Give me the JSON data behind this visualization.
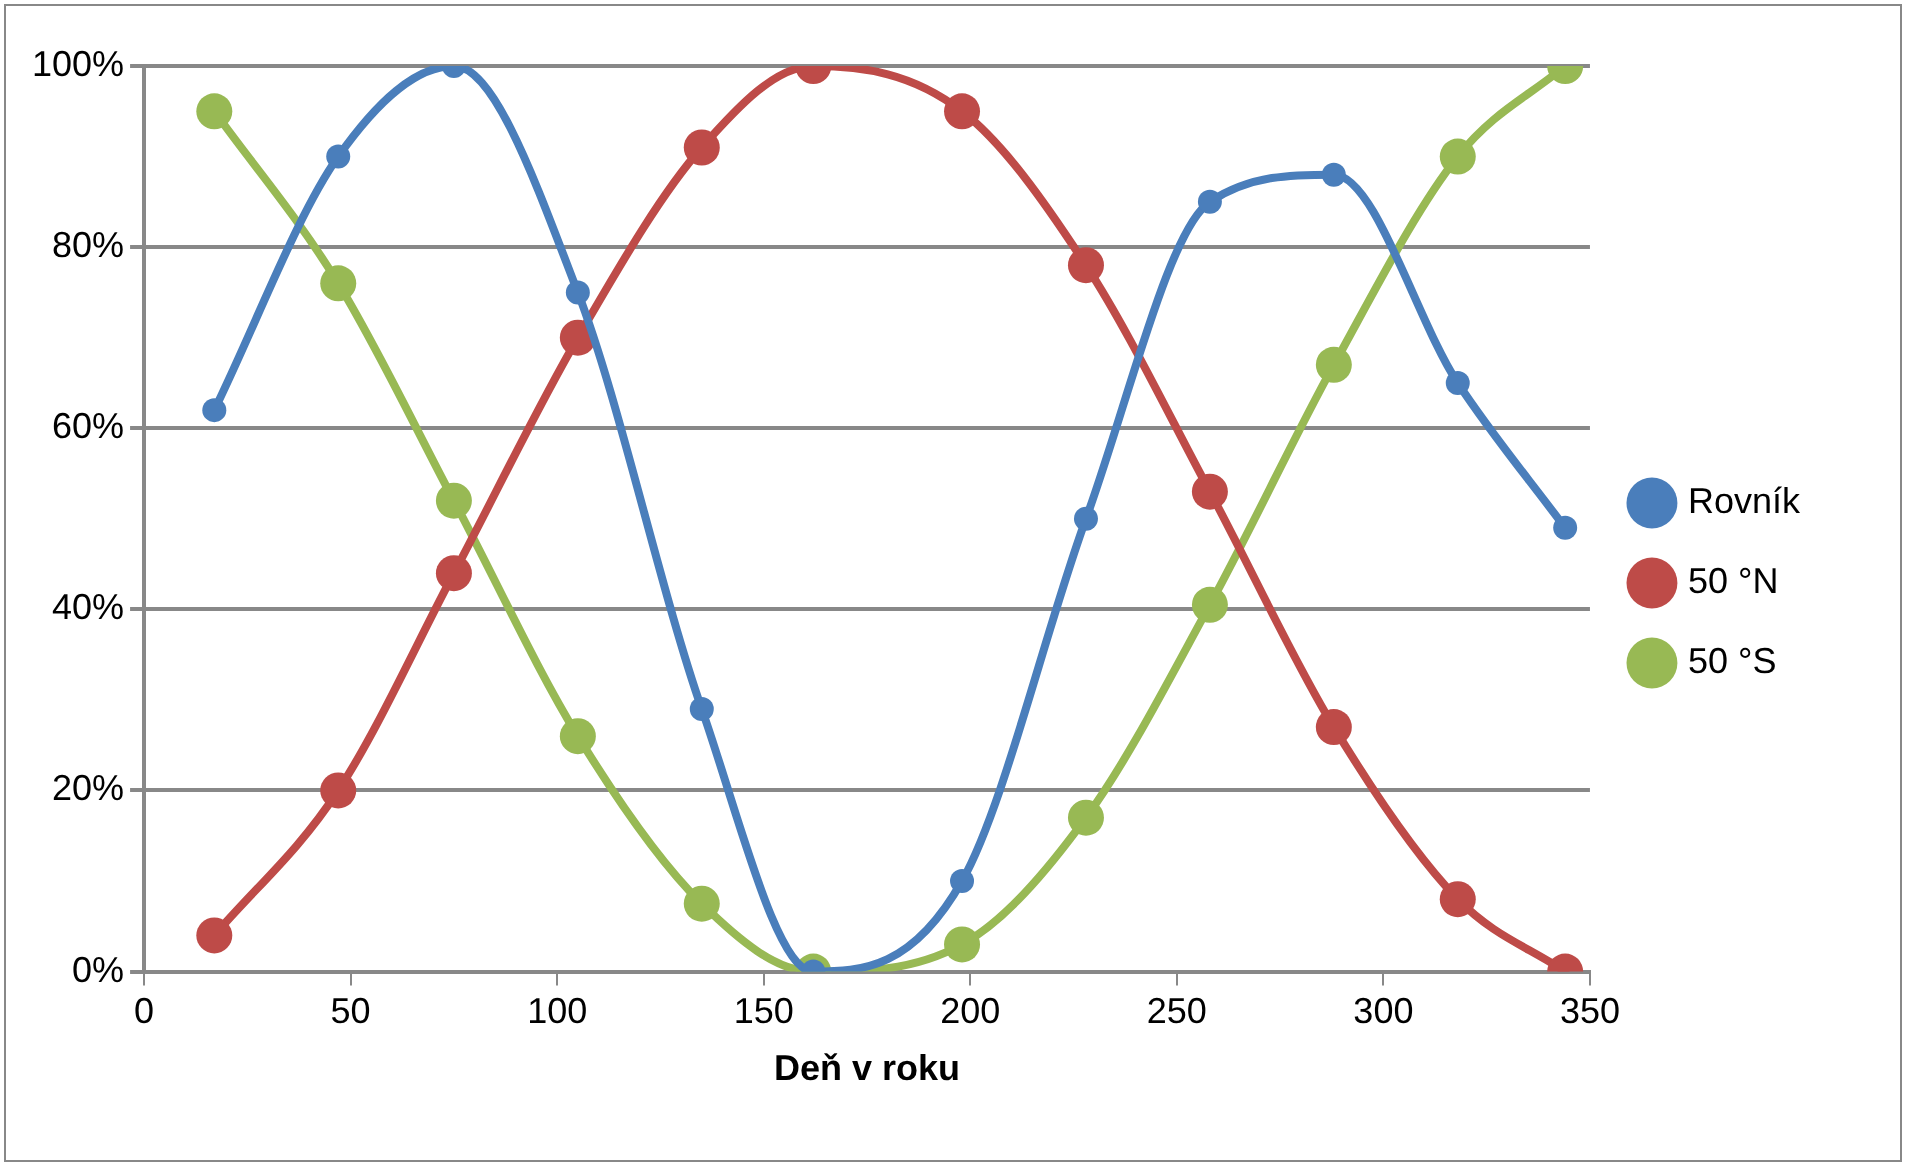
{
  "chart_data": {
    "type": "line",
    "xlabel": "Deň v roku",
    "x": [
      17,
      47,
      75,
      105,
      135,
      162,
      198,
      228,
      258,
      288,
      318,
      344
    ],
    "series": [
      {
        "name": "Rovník",
        "color": "#4a7ebb",
        "values": [
          62,
          90,
          100,
          75,
          29,
          0,
          10,
          50,
          85,
          88,
          65,
          49
        ]
      },
      {
        "name": "50 °N",
        "color": "#be4b48",
        "values": [
          4,
          20,
          44,
          70,
          91,
          100,
          95,
          78,
          53,
          27,
          8,
          0
        ]
      },
      {
        "name": "50 °S",
        "color": "#98b954",
        "values": [
          95,
          76,
          52,
          26,
          7.5,
          0,
          3,
          17,
          40.5,
          67,
          90,
          100
        ]
      }
    ],
    "xlim": [
      0,
      350
    ],
    "xticks": [
      0,
      50,
      100,
      150,
      200,
      250,
      300,
      350
    ],
    "ylim": [
      0,
      100
    ],
    "yticks": [
      {
        "value": 0,
        "label": "0%"
      },
      {
        "value": 20,
        "label": "20%"
      },
      {
        "value": 40,
        "label": "40%"
      },
      {
        "value": 60,
        "label": "60%"
      },
      {
        "value": 80,
        "label": "80%"
      },
      {
        "value": 100,
        "label": "100%"
      }
    ],
    "grid": "y",
    "legend": "right",
    "marker": "circle",
    "line_style": "solid"
  }
}
